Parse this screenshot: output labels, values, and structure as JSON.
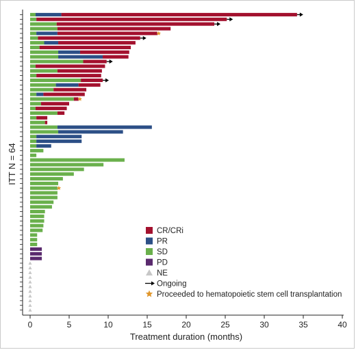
{
  "chart_data": {
    "type": "swimmer",
    "title": "",
    "xlabel": "Treatment duration (months)",
    "ylabel": "ITT N = 64",
    "xlim": [
      0,
      40
    ],
    "xticks": [
      0,
      5,
      10,
      15,
      20,
      25,
      30,
      35,
      40
    ],
    "n_patients": 64,
    "colors": {
      "SD": "#6ab04c",
      "PR": "#2c4f86",
      "CR": "#a3112e",
      "PD": "#5a2a6e",
      "NE": "#c7c7c7",
      "arrow": "#000000",
      "star": "#e0962b"
    },
    "legend": [
      {
        "key": "CR",
        "label": "CR/CRi",
        "symbol": "square"
      },
      {
        "key": "PR",
        "label": "PR",
        "symbol": "square"
      },
      {
        "key": "SD",
        "label": "SD",
        "symbol": "square"
      },
      {
        "key": "PD",
        "label": "PD",
        "symbol": "square"
      },
      {
        "key": "NE",
        "label": "NE",
        "symbol": "triangle"
      },
      {
        "key": "arrow",
        "label": "Ongoing",
        "symbol": "arrow"
      },
      {
        "key": "star",
        "label": "Proceeded to hematopoietic stem cell transplantation",
        "symbol": "star"
      }
    ],
    "patients": [
      {
        "segments": [
          [
            "SD",
            0,
            0.7
          ],
          [
            "PR",
            0.7,
            4.0
          ],
          [
            "CR",
            4.0,
            34.2
          ]
        ],
        "ongoing": true,
        "hsct": false
      },
      {
        "segments": [
          [
            "SD",
            0,
            0.8
          ],
          [
            "CR",
            0.8,
            25.2
          ]
        ],
        "ongoing": true,
        "hsct": false
      },
      {
        "segments": [
          [
            "SD",
            0,
            3.4
          ],
          [
            "CR",
            3.4,
            23.6
          ]
        ],
        "ongoing": true,
        "hsct": false
      },
      {
        "segments": [
          [
            "SD",
            0,
            3.5
          ],
          [
            "CR",
            3.5,
            18.0
          ]
        ],
        "ongoing": false,
        "hsct": false
      },
      {
        "segments": [
          [
            "SD",
            0,
            0.8
          ],
          [
            "PR",
            0.8,
            3.5
          ],
          [
            "CR",
            3.5,
            16.3
          ]
        ],
        "ongoing": false,
        "hsct": true
      },
      {
        "segments": [
          [
            "SD",
            0,
            1.0
          ],
          [
            "CR",
            1.0,
            14.1
          ]
        ],
        "ongoing": true,
        "hsct": false
      },
      {
        "segments": [
          [
            "SD",
            0,
            1.8
          ],
          [
            "PR",
            1.8,
            3.6
          ],
          [
            "CR",
            3.6,
            13.5
          ]
        ],
        "ongoing": false,
        "hsct": false
      },
      {
        "segments": [
          [
            "SD",
            0,
            1.2
          ],
          [
            "CR",
            1.2,
            12.9
          ]
        ],
        "ongoing": false,
        "hsct": false
      },
      {
        "segments": [
          [
            "SD",
            0,
            3.6
          ],
          [
            "PR",
            3.6,
            6.4
          ],
          [
            "CR",
            6.4,
            12.7
          ]
        ],
        "ongoing": false,
        "hsct": false
      },
      {
        "segments": [
          [
            "SD",
            0,
            3.6
          ],
          [
            "PR",
            3.6,
            9.3
          ],
          [
            "CR",
            9.3,
            12.6
          ]
        ],
        "ongoing": false,
        "hsct": false
      },
      {
        "segments": [
          [
            "SD",
            0,
            6.8
          ],
          [
            "CR",
            6.8,
            9.8
          ]
        ],
        "ongoing": true,
        "hsct": false
      },
      {
        "segments": [
          [
            "SD",
            0,
            0.7
          ],
          [
            "CR",
            0.7,
            9.6
          ]
        ],
        "ongoing": false,
        "hsct": false
      },
      {
        "segments": [
          [
            "SD",
            0,
            3.5
          ],
          [
            "CR",
            3.5,
            9.2
          ]
        ],
        "ongoing": false,
        "hsct": false
      },
      {
        "segments": [
          [
            "SD",
            0,
            0.8
          ],
          [
            "CR",
            0.8,
            9.1
          ]
        ],
        "ongoing": false,
        "hsct": false
      },
      {
        "segments": [
          [
            "SD",
            0,
            6.5
          ],
          [
            "CR",
            6.5,
            9.3
          ]
        ],
        "ongoing": true,
        "hsct": false
      },
      {
        "segments": [
          [
            "SD",
            0,
            3.3
          ],
          [
            "PR",
            3.3,
            6.2
          ],
          [
            "CR",
            6.2,
            9.0
          ]
        ],
        "ongoing": false,
        "hsct": false
      },
      {
        "segments": [
          [
            "SD",
            0,
            3.0
          ],
          [
            "CR",
            3.0,
            7.2
          ]
        ],
        "ongoing": false,
        "hsct": false
      },
      {
        "segments": [
          [
            "SD",
            0,
            0.8
          ],
          [
            "PR",
            0.8,
            1.7
          ],
          [
            "CR",
            1.7,
            7.0
          ]
        ],
        "ongoing": false,
        "hsct": false
      },
      {
        "segments": [
          [
            "SD",
            0,
            5.6
          ],
          [
            "CR",
            5.6,
            6.2
          ]
        ],
        "ongoing": false,
        "hsct": true
      },
      {
        "segments": [
          [
            "SD",
            0,
            1.4
          ],
          [
            "CR",
            1.4,
            5.0
          ]
        ],
        "ongoing": false,
        "hsct": false
      },
      {
        "segments": [
          [
            "SD",
            0,
            0.7
          ],
          [
            "CR",
            0.7,
            4.7
          ]
        ],
        "ongoing": false,
        "hsct": false
      },
      {
        "segments": [
          [
            "SD",
            0,
            3.5
          ],
          [
            "CR",
            3.5,
            4.4
          ]
        ],
        "ongoing": false,
        "hsct": false
      },
      {
        "segments": [
          [
            "SD",
            0,
            0.8
          ],
          [
            "CR",
            0.8,
            2.2
          ]
        ],
        "ongoing": false,
        "hsct": false
      },
      {
        "segments": [
          [
            "SD",
            0,
            1.9
          ],
          [
            "CR",
            1.9,
            2.2
          ]
        ],
        "ongoing": false,
        "hsct": false
      },
      {
        "segments": [
          [
            "SD",
            0,
            3.5
          ],
          [
            "PR",
            3.5,
            15.6
          ]
        ],
        "ongoing": false,
        "hsct": false
      },
      {
        "segments": [
          [
            "SD",
            0,
            3.6
          ],
          [
            "PR",
            3.6,
            11.9
          ]
        ],
        "ongoing": false,
        "hsct": false
      },
      {
        "segments": [
          [
            "SD",
            0,
            0.8
          ],
          [
            "PR",
            0.8,
            6.6
          ]
        ],
        "ongoing": false,
        "hsct": false
      },
      {
        "segments": [
          [
            "SD",
            0,
            0.8
          ],
          [
            "PR",
            0.8,
            6.6
          ]
        ],
        "ongoing": false,
        "hsct": false
      },
      {
        "segments": [
          [
            "SD",
            0,
            0.8
          ],
          [
            "PR",
            0.8,
            2.7
          ]
        ],
        "ongoing": false,
        "hsct": false
      },
      {
        "segments": [
          [
            "SD",
            0,
            1.7
          ]
        ],
        "ongoing": false,
        "hsct": false
      },
      {
        "segments": [
          [
            "SD",
            0,
            0.8
          ]
        ],
        "ongoing": false,
        "hsct": false
      },
      {
        "segments": [
          [
            "SD",
            0,
            12.1
          ]
        ],
        "ongoing": false,
        "hsct": false
      },
      {
        "segments": [
          [
            "SD",
            0,
            9.4
          ]
        ],
        "ongoing": false,
        "hsct": false
      },
      {
        "segments": [
          [
            "SD",
            0,
            6.9
          ]
        ],
        "ongoing": false,
        "hsct": false
      },
      {
        "segments": [
          [
            "SD",
            0,
            5.6
          ]
        ],
        "ongoing": false,
        "hsct": false
      },
      {
        "segments": [
          [
            "SD",
            0,
            4.2
          ]
        ],
        "ongoing": false,
        "hsct": false
      },
      {
        "segments": [
          [
            "SD",
            0,
            3.6
          ]
        ],
        "ongoing": false,
        "hsct": false
      },
      {
        "segments": [
          [
            "SD",
            0,
            3.5
          ]
        ],
        "ongoing": false,
        "hsct": true
      },
      {
        "segments": [
          [
            "SD",
            0,
            3.5
          ]
        ],
        "ongoing": false,
        "hsct": false
      },
      {
        "segments": [
          [
            "SD",
            0,
            3.5
          ]
        ],
        "ongoing": false,
        "hsct": false
      },
      {
        "segments": [
          [
            "SD",
            0,
            3.0
          ]
        ],
        "ongoing": false,
        "hsct": false
      },
      {
        "segments": [
          [
            "SD",
            0,
            2.8
          ]
        ],
        "ongoing": false,
        "hsct": false
      },
      {
        "segments": [
          [
            "SD",
            0,
            1.9
          ]
        ],
        "ongoing": false,
        "hsct": false
      },
      {
        "segments": [
          [
            "SD",
            0,
            1.8
          ]
        ],
        "ongoing": false,
        "hsct": false
      },
      {
        "segments": [
          [
            "SD",
            0,
            1.8
          ]
        ],
        "ongoing": false,
        "hsct": false
      },
      {
        "segments": [
          [
            "SD",
            0,
            1.7
          ]
        ],
        "ongoing": false,
        "hsct": false
      },
      {
        "segments": [
          [
            "SD",
            0,
            1.6
          ]
        ],
        "ongoing": false,
        "hsct": false
      },
      {
        "segments": [
          [
            "SD",
            0,
            0.9
          ]
        ],
        "ongoing": false,
        "hsct": false
      },
      {
        "segments": [
          [
            "SD",
            0,
            0.9
          ]
        ],
        "ongoing": false,
        "hsct": false
      },
      {
        "segments": [
          [
            "SD",
            0,
            0.9
          ]
        ],
        "ongoing": false,
        "hsct": false
      },
      {
        "segments": [
          [
            "PD",
            0,
            1.5
          ]
        ],
        "ongoing": false,
        "hsct": false
      },
      {
        "segments": [
          [
            "PD",
            0,
            1.5
          ]
        ],
        "ongoing": false,
        "hsct": false
      },
      {
        "segments": [
          [
            "PD",
            0,
            1.5
          ]
        ],
        "ongoing": false,
        "hsct": false
      },
      {
        "segments": [
          [
            "NE",
            0,
            0
          ]
        ],
        "ongoing": false,
        "hsct": false
      },
      {
        "segments": [
          [
            "NE",
            0,
            0
          ]
        ],
        "ongoing": false,
        "hsct": false
      },
      {
        "segments": [
          [
            "NE",
            0,
            0
          ]
        ],
        "ongoing": false,
        "hsct": false
      },
      {
        "segments": [
          [
            "NE",
            0,
            0
          ]
        ],
        "ongoing": false,
        "hsct": false
      },
      {
        "segments": [
          [
            "NE",
            0,
            0
          ]
        ],
        "ongoing": false,
        "hsct": false
      },
      {
        "segments": [
          [
            "NE",
            0,
            0
          ]
        ],
        "ongoing": false,
        "hsct": false
      },
      {
        "segments": [
          [
            "NE",
            0,
            0
          ]
        ],
        "ongoing": false,
        "hsct": false
      },
      {
        "segments": [
          [
            "NE",
            0,
            0
          ]
        ],
        "ongoing": false,
        "hsct": false
      },
      {
        "segments": [
          [
            "NE",
            0,
            0
          ]
        ],
        "ongoing": false,
        "hsct": false
      },
      {
        "segments": [
          [
            "NE",
            0,
            0
          ]
        ],
        "ongoing": false,
        "hsct": false
      },
      {
        "segments": [
          [
            "NE",
            0,
            0
          ]
        ],
        "ongoing": false,
        "hsct": false
      }
    ]
  }
}
